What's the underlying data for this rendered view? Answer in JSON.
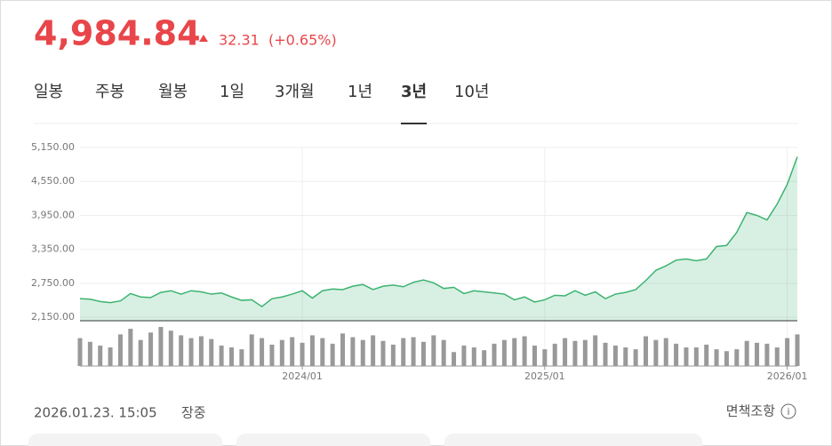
{
  "header": {
    "price": "4,984.84",
    "change": "32.31",
    "change_percent": "(+0.65%)"
  },
  "tabs": [
    "일봉",
    "주봉",
    "월봉",
    "1일",
    "3개월",
    "1년",
    "3년",
    "10년"
  ],
  "active_tab": 6,
  "chart_data": {
    "type": "line",
    "categories": [
      null,
      null,
      null,
      null,
      null,
      null,
      null,
      null,
      null,
      null,
      null,
      null,
      null,
      null,
      null,
      null,
      null,
      null,
      null,
      null,
      null,
      null,
      "2024/01",
      null,
      null,
      null,
      null,
      null,
      null,
      null,
      null,
      null,
      null,
      null,
      null,
      null,
      null,
      null,
      null,
      null,
      null,
      null,
      null,
      null,
      null,
      null,
      "2025/01",
      null,
      null,
      null,
      null,
      null,
      null,
      null,
      null,
      null,
      null,
      null,
      null,
      null,
      null,
      null,
      null,
      null,
      null,
      null,
      null,
      null,
      null,
      null,
      "2026/01",
      null
    ],
    "series": [
      {
        "name": "price",
        "color": "#3cb371",
        "values": [
          2480,
          2470,
          2430,
          2410,
          2440,
          2570,
          2510,
          2500,
          2590,
          2620,
          2560,
          2620,
          2600,
          2560,
          2580,
          2510,
          2450,
          2460,
          2340,
          2480,
          2510,
          2560,
          2620,
          2490,
          2620,
          2650,
          2640,
          2700,
          2730,
          2640,
          2700,
          2720,
          2690,
          2770,
          2810,
          2760,
          2660,
          2680,
          2570,
          2620,
          2600,
          2580,
          2560,
          2460,
          2510,
          2420,
          2460,
          2540,
          2530,
          2620,
          2540,
          2600,
          2480,
          2560,
          2590,
          2640,
          2800,
          2980,
          3060,
          3160,
          3180,
          3150,
          3180,
          3400,
          3420,
          3650,
          4000,
          3950,
          3870,
          4150,
          4500,
          4984.84
        ]
      },
      {
        "name": "volume",
        "color": "#999999",
        "values": [
          30,
          26,
          22,
          20,
          34,
          40,
          28,
          36,
          42,
          38,
          33,
          30,
          32,
          29,
          22,
          20,
          18,
          34,
          30,
          23,
          28,
          31,
          25,
          33,
          30,
          24,
          35,
          31,
          28,
          33,
          27,
          23,
          30,
          31,
          26,
          33,
          28,
          15,
          22,
          20,
          17,
          24,
          28,
          30,
          32,
          22,
          18,
          24,
          30,
          27,
          28,
          33,
          25,
          22,
          20,
          18,
          32,
          28,
          30,
          24,
          20,
          20,
          23,
          18,
          16,
          18,
          27,
          25,
          24,
          20,
          30,
          34
        ]
      }
    ],
    "ylim": [
      2090,
      5150
    ],
    "yticks": [
      {
        "value": 2150,
        "label": "2,150.00"
      },
      {
        "value": 2750,
        "label": "2,750.00"
      },
      {
        "value": 3350,
        "label": "3,350.00"
      },
      {
        "value": 3950,
        "label": "3,950.00"
      },
      {
        "value": 4550,
        "label": "4,550.00"
      },
      {
        "value": 5150,
        "label": "5,150.00"
      }
    ],
    "grid": true
  },
  "footer": {
    "timestamp": "2026.01.23. 15:05",
    "status": "장중",
    "disclaimer": "면책조항"
  }
}
